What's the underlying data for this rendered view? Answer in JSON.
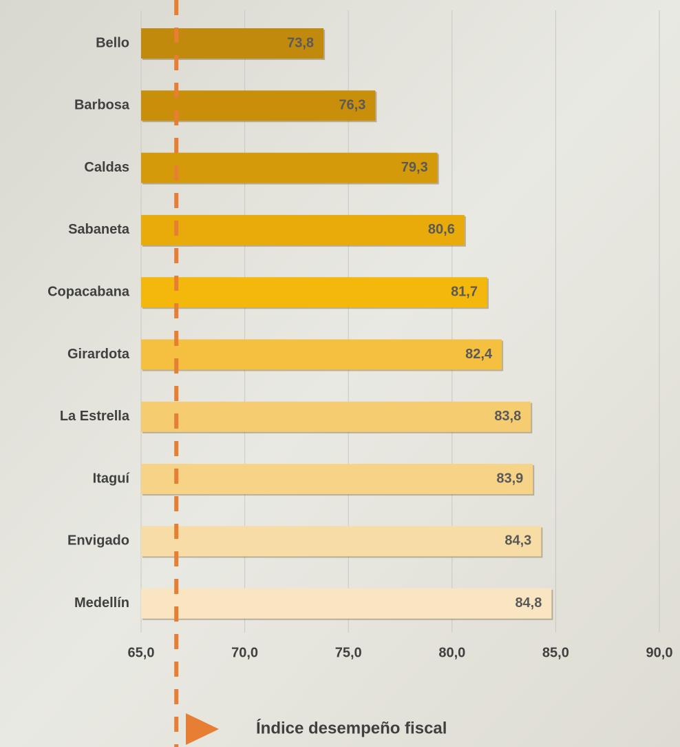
{
  "chart_data": {
    "type": "barh",
    "categories": [
      "Bello",
      "Barbosa",
      "Caldas",
      "Sabaneta",
      "Copacabana",
      "Girardota",
      "La Estrella",
      "Itaguí",
      "Envigado",
      "Medellín"
    ],
    "series": [
      {
        "name": "Índice desempeño fiscal",
        "values": [
          73.8,
          76.3,
          79.3,
          80.6,
          81.7,
          82.4,
          83.8,
          83.9,
          84.3,
          84.8
        ],
        "value_labels": [
          "73,8",
          "76,3",
          "79,3",
          "80,6",
          "81,7",
          "82,4",
          "83,8",
          "83,9",
          "84,3",
          "84,8"
        ],
        "colors": [
          "#c28a0c",
          "#c98f0a",
          "#d49a0a",
          "#e8ab0a",
          "#f4b80c",
          "#f5c040",
          "#f6cc70",
          "#f7d388",
          "#f8dca5",
          "#fae5c3"
        ]
      }
    ],
    "xlim": [
      65,
      90
    ],
    "xticks": [
      {
        "value": 65,
        "label": "65,0"
      },
      {
        "value": 70,
        "label": "70,0"
      },
      {
        "value": 75,
        "label": "75,0"
      },
      {
        "value": 80,
        "label": "80,0"
      },
      {
        "value": 85,
        "label": "85,0"
      },
      {
        "value": 90,
        "label": "90,0"
      }
    ],
    "reference_line": 66.7,
    "reference_color": "#e67e34",
    "grid": true
  }
}
